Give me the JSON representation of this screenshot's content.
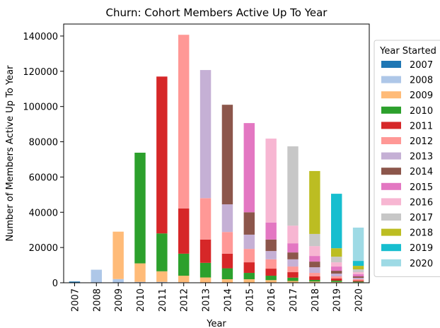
{
  "chart_data": {
    "type": "stacked_bar",
    "title": "Churn: Cohort Members Active Up To Year",
    "xlabel": "Year",
    "ylabel": "Number of Members Active Up To Year",
    "legend_title": "Year Started",
    "legend_position": "outside right",
    "categories": [
      "2007",
      "2008",
      "2009",
      "2010",
      "2011",
      "2012",
      "2013",
      "2014",
      "2015",
      "2016",
      "2017",
      "2018",
      "2019",
      "2020"
    ],
    "ylim": [
      0,
      146800
    ],
    "yticks": [
      0,
      20000,
      40000,
      60000,
      80000,
      100000,
      120000,
      140000
    ],
    "series": [
      {
        "name": "2007",
        "color": "#1f77b4",
        "values": [
          700,
          200,
          100,
          0,
          0,
          0,
          0,
          0,
          0,
          0,
          0,
          0,
          0,
          0
        ]
      },
      {
        "name": "2008",
        "color": "#aec7e8",
        "values": [
          null,
          7200,
          2000,
          500,
          500,
          300,
          200,
          200,
          200,
          200,
          100,
          100,
          0,
          0
        ]
      },
      {
        "name": "2009",
        "color": "#ffbb78",
        "values": [
          null,
          null,
          26900,
          10500,
          6000,
          3700,
          2800,
          1800,
          1800,
          1300,
          900,
          600,
          500,
          300
        ]
      },
      {
        "name": "2010",
        "color": "#2ca02c",
        "values": [
          null,
          null,
          null,
          62800,
          21500,
          12500,
          8300,
          6200,
          3600,
          2500,
          1900,
          900,
          700,
          400
        ]
      },
      {
        "name": "2011",
        "color": "#d62728",
        "values": [
          null,
          null,
          null,
          null,
          89000,
          25700,
          13200,
          8300,
          6000,
          4000,
          3100,
          2000,
          1200,
          600
        ]
      },
      {
        "name": "2012",
        "color": "#ff9896",
        "values": [
          null,
          null,
          null,
          null,
          null,
          98500,
          23500,
          12300,
          7600,
          5300,
          3200,
          2000,
          1200,
          700
        ]
      },
      {
        "name": "2013",
        "color": "#c5b0d5",
        "values": [
          null,
          null,
          null,
          null,
          null,
          null,
          72700,
          15700,
          8100,
          4700,
          4100,
          3200,
          1600,
          800
        ]
      },
      {
        "name": "2014",
        "color": "#8c564b",
        "values": [
          null,
          null,
          null,
          null,
          null,
          null,
          null,
          56500,
          12700,
          6500,
          3900,
          3200,
          1600,
          800
        ]
      },
      {
        "name": "2015",
        "color": "#e377c2",
        "values": [
          null,
          null,
          null,
          null,
          null,
          null,
          null,
          null,
          50600,
          9700,
          5200,
          3200,
          2400,
          1200
        ]
      },
      {
        "name": "2016",
        "color": "#f7b6d2",
        "values": [
          null,
          null,
          null,
          null,
          null,
          null,
          null,
          null,
          null,
          47600,
          10000,
          5600,
          2400,
          1200
        ]
      },
      {
        "name": "2017",
        "color": "#c7c7c7",
        "values": [
          null,
          null,
          null,
          null,
          null,
          null,
          null,
          null,
          null,
          null,
          45000,
          6900,
          3200,
          1600
        ]
      },
      {
        "name": "2018",
        "color": "#bcbd22",
        "values": [
          null,
          null,
          null,
          null,
          null,
          null,
          null,
          null,
          null,
          null,
          null,
          35700,
          4800,
          2000
        ]
      },
      {
        "name": "2019",
        "color": "#17becf",
        "values": [
          null,
          null,
          null,
          null,
          null,
          null,
          null,
          null,
          null,
          null,
          null,
          null,
          30900,
          2800
        ]
      },
      {
        "name": "2020",
        "color": "#9edae5",
        "values": [
          null,
          null,
          null,
          null,
          null,
          null,
          null,
          null,
          null,
          null,
          null,
          null,
          null,
          18900
        ]
      }
    ]
  }
}
